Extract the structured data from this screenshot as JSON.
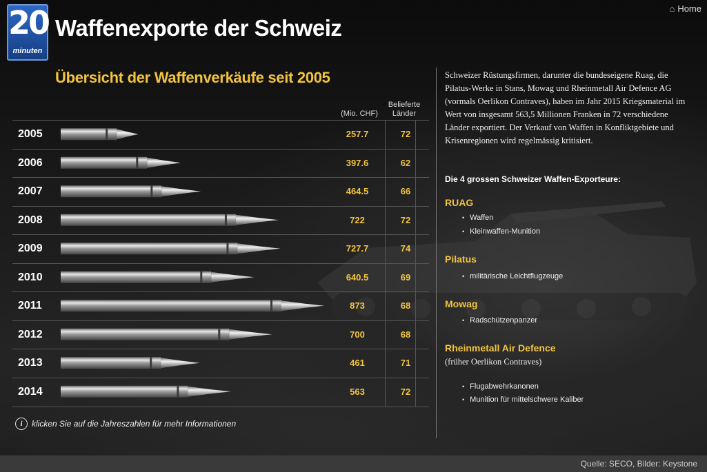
{
  "header": {
    "logo_num": "20",
    "logo_word": "minuten",
    "title": "Waffenexporte der Schweiz",
    "home_label": "Home"
  },
  "chart_data": {
    "type": "bar",
    "title": "Übersicht der Waffenverkäufe seit 2005",
    "value_header": "(Mio. CHF)",
    "countries_header_1": "Belieferte",
    "countries_header_2": "Länder",
    "categories": [
      "2005",
      "2006",
      "2007",
      "2008",
      "2009",
      "2010",
      "2011",
      "2012",
      "2013",
      "2014"
    ],
    "values": [
      257.7,
      397.6,
      464.5,
      722,
      727.7,
      640.5,
      873,
      700,
      461,
      563
    ],
    "value_labels": [
      "257.7",
      "397.6",
      "464.5",
      "722",
      "727.7",
      "640.5",
      "873",
      "700",
      "461",
      "563"
    ],
    "countries": [
      72,
      62,
      66,
      72,
      74,
      69,
      68,
      68,
      71,
      72
    ]
  },
  "info_text": "klicken Sie auf die Jahreszahlen für mehr Informationen",
  "info_icon": "info-icon",
  "intro": "Schweizer Rüstungsfirmen, darunter die bundeseigene Ruag, die Pilatus-Werke in Stans, Mowag und Rheinmetall Air Defence AG (vormals Oerlikon Contraves), haben im Jahr 2015 Kriegsmaterial im Wert von insgesamt 563,5 Millionen Franken in 72 verschiedene Länder exportiert. Der Verkauf von Waffen in Konfliktgebiete und Krisenregionen wird regelmässig kritisiert.",
  "exporters_heading": "Die 4 grossen Schweizer Waffen-Exporteure:",
  "exporters": [
    {
      "name": "RUAG",
      "note": "",
      "products": [
        "Waffen",
        "Kleinwaffen-Munition"
      ]
    },
    {
      "name": "Pilatus",
      "note": "",
      "products": [
        "militärische Leichtflugzeuge"
      ]
    },
    {
      "name": "Mowag",
      "note": "",
      "products": [
        "Radschützenpanzer"
      ]
    },
    {
      "name": "Rheinmetall Air Defence",
      "note": "(früher Oerlikon Contraves)",
      "products": [
        "Flugabwehrkanonen",
        "Munition für mittelschwere Kaliber"
      ]
    }
  ],
  "footer": {
    "source": "Quelle: SECO, Bilder: Keystone"
  },
  "colors": {
    "accent": "#f2c43f",
    "text": "#ffffff",
    "logo_blue": "#2c67c2"
  }
}
